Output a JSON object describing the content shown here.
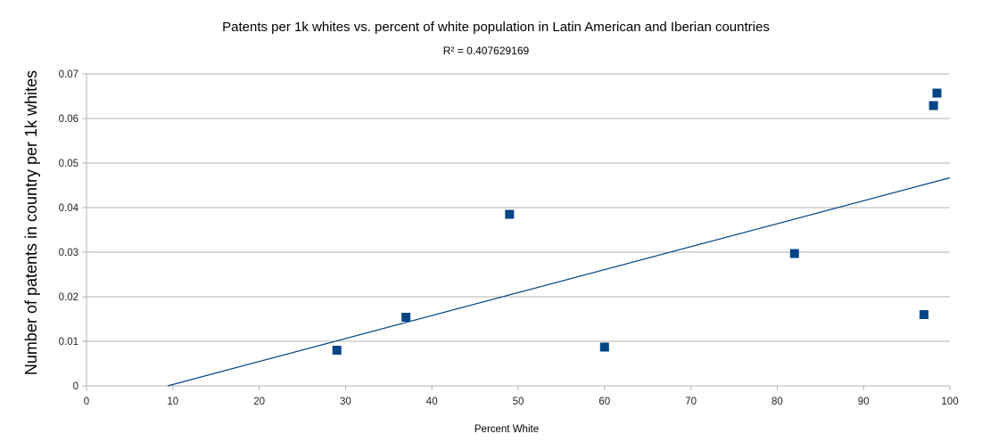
{
  "chart_data": {
    "type": "scatter",
    "title": "Patents per 1k whites vs. percent of white population in Latin American and Iberian countries",
    "subtitle": "R² = 0.407629169",
    "xlabel": "Percent White",
    "ylabel": "Number of patents in country per 1k whites",
    "xlim": [
      0,
      100
    ],
    "ylim": [
      0,
      0.07
    ],
    "x_ticks": [
      "0",
      "10",
      "20",
      "30",
      "40",
      "50",
      "60",
      "70",
      "80",
      "90",
      "100"
    ],
    "y_ticks": [
      "0",
      "0.01",
      "0.02",
      "0.03",
      "0.04",
      "0.05",
      "0.06",
      "0.07"
    ],
    "grid": "horizontal",
    "marker": "square",
    "color": "#004586",
    "series": [
      {
        "points": [
          {
            "x": 29,
            "y": 0.008
          },
          {
            "x": 37,
            "y": 0.0154
          },
          {
            "x": 49,
            "y": 0.0385
          },
          {
            "x": 60,
            "y": 0.0087
          },
          {
            "x": 82,
            "y": 0.0297
          },
          {
            "x": 97,
            "y": 0.016
          },
          {
            "x": 98.1,
            "y": 0.0629
          },
          {
            "x": 98.5,
            "y": 0.0657
          }
        ]
      }
    ],
    "trendline": {
      "type": "linear",
      "from": {
        "x": 9.4,
        "y": 0
      },
      "to": {
        "x": 100,
        "y": 0.0467
      }
    }
  }
}
